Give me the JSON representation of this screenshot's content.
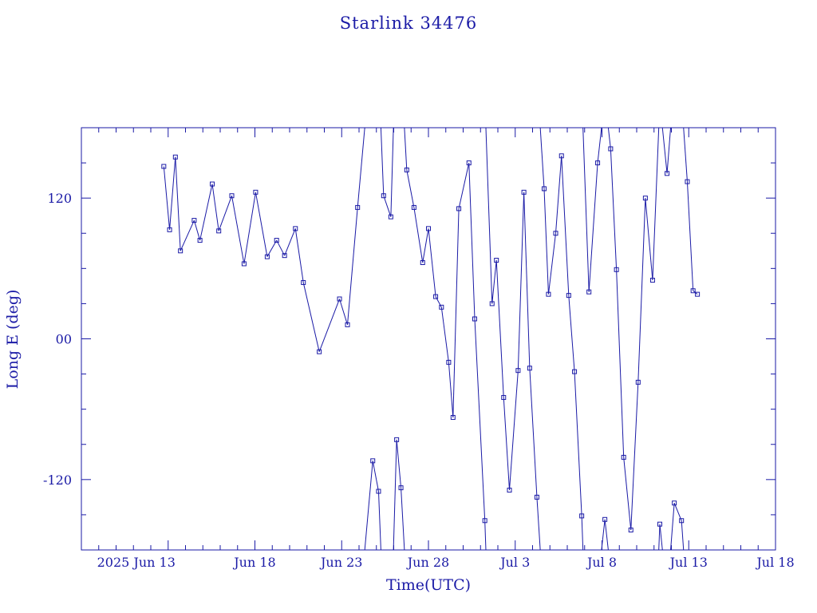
{
  "chart_data": {
    "type": "line",
    "title": "Starlink 34476",
    "xlabel": "Time(UTC)",
    "ylabel": "Long E (deg)",
    "xlim": [
      "2025-06-08",
      "2025-07-18"
    ],
    "ylim": [
      -180,
      180
    ],
    "x_tick_labels": [
      "2025 Jun 13",
      "Jun 18",
      "Jun 23",
      "Jun 28",
      "Jul 3",
      "Jul 8",
      "Jul 13",
      "Jul 18"
    ],
    "y_tick_labels": [
      "120",
      "00",
      "-120"
    ],
    "y_ticks": [
      120,
      0,
      -120
    ],
    "grid": false,
    "color": "#1a1aa6",
    "series": [
      {
        "name": "",
        "x": [
          "2025-06-12 18:00",
          "2025-06-13 02:00",
          "2025-06-13 10:00",
          "2025-06-13 17:00",
          "2025-06-14 12:00",
          "2025-06-14 20:00",
          "2025-06-15 13:00",
          "2025-06-15 22:00",
          "2025-06-16 16:00",
          "2025-06-17 09:00",
          "2025-06-18 01:00",
          "2025-06-18 17:00",
          "2025-06-19 06:00",
          "2025-06-19 17:00",
          "2025-06-20 08:00",
          "2025-06-20 19:00",
          "2025-06-21 17:00",
          "2025-06-22 21:00",
          "2025-06-23 08:00",
          "2025-06-23 22:00",
          "2025-06-24 19:00",
          "2025-06-25 03:00",
          "2025-06-25 10:00",
          "2025-06-25 20:00",
          "2025-06-26 04:00",
          "2025-06-26 10:00",
          "2025-06-26 18:00",
          "2025-06-27 04:00",
          "2025-06-27 16:00",
          "2025-06-28 00:00",
          "2025-06-28 10:00",
          "2025-06-28 18:00",
          "2025-06-29 04:00",
          "2025-06-29 10:00",
          "2025-06-29 18:00",
          "2025-06-30 08:00",
          "2025-06-30 16:00",
          "2025-07-01 06:00",
          "2025-07-01 16:00",
          "2025-07-01 22:00",
          "2025-07-02 08:00",
          "2025-07-02 16:00",
          "2025-07-03 04:00",
          "2025-07-03 12:00",
          "2025-07-03 20:00",
          "2025-07-04 06:00",
          "2025-07-04 16:00",
          "2025-07-04 22:00",
          "2025-07-05 08:00",
          "2025-07-05 16:00",
          "2025-07-06 02:00",
          "2025-07-06 10:00",
          "2025-07-06 20:00",
          "2025-07-07 06:00",
          "2025-07-07 18:00",
          "2025-07-08 04:00",
          "2025-07-08 12:00",
          "2025-07-08 20:00",
          "2025-07-09 06:00",
          "2025-07-09 16:00",
          "2025-07-10 02:00",
          "2025-07-10 12:00",
          "2025-07-10 22:00",
          "2025-07-11 08:00",
          "2025-07-11 18:00",
          "2025-07-12 04:00",
          "2025-07-12 14:00",
          "2025-07-12 22:00",
          "2025-07-13 06:00",
          "2025-07-13 12:00"
        ],
        "y": [
          147,
          93,
          155,
          75,
          101,
          84,
          132,
          92,
          122,
          64,
          125,
          70,
          84,
          71,
          94,
          48,
          -11,
          34,
          12,
          112,
          -104,
          -130,
          122,
          104,
          -86,
          -127,
          144,
          112,
          65,
          94,
          36,
          27,
          -20,
          -67,
          111,
          150,
          17,
          -155,
          30,
          67,
          -50,
          -129,
          -27,
          125,
          -25,
          -135,
          128,
          38,
          90,
          156,
          37,
          -28,
          -151,
          40,
          150,
          -154,
          162,
          59,
          -101,
          -163,
          -37,
          120,
          50,
          -158,
          141,
          -140,
          -155,
          134,
          41,
          38
        ]
      }
    ]
  }
}
